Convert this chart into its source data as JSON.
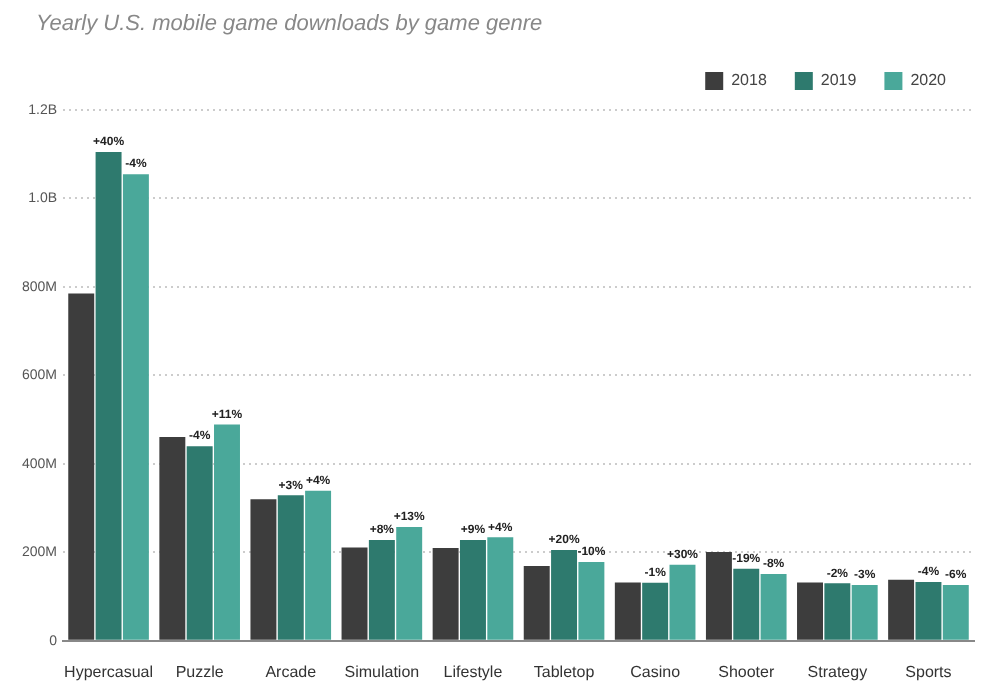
{
  "chart_data": {
    "type": "bar",
    "title": "Yearly U.S. mobile game downloads by game genre",
    "categories": [
      "Hypercasual",
      "Puzzle",
      "Arcade",
      "Simulation",
      "Lifestyle",
      "Tabletop",
      "Casino",
      "Shooter",
      "Strategy",
      "Sports"
    ],
    "series": [
      {
        "name": "2018",
        "color": "#3d3d3d",
        "values": [
          785000000,
          461000000,
          320000000,
          211000000,
          210000000,
          169000000,
          132000000,
          201000000,
          132000000,
          138000000
        ]
      },
      {
        "name": "2019",
        "color": "#2e7a6e",
        "values": [
          1105000000,
          440000000,
          329000000,
          228000000,
          228000000,
          205000000,
          131000000,
          163000000,
          130000000,
          133000000
        ]
      },
      {
        "name": "2020",
        "color": "#4aa89a",
        "values": [
          1055000000,
          489000000,
          339000000,
          257000000,
          234000000,
          178000000,
          172000000,
          151000000,
          126000000,
          126000000
        ]
      }
    ],
    "annotations": [
      "+40%",
      "-4%",
      "-4%",
      "+11%",
      "+3%",
      "+4%",
      "+8%",
      "+13%",
      "+9%",
      "+4%",
      "+20%",
      "-10%",
      "-1%",
      "+30%",
      "-19%",
      "-8%",
      "-2%",
      "-3%",
      "-4%",
      "-6%"
    ],
    "ylim": [
      0,
      1200000000
    ],
    "yticks": [
      {
        "value": 0,
        "label": "0"
      },
      {
        "value": 200000000,
        "label": "200M"
      },
      {
        "value": 400000000,
        "label": "400M"
      },
      {
        "value": 600000000,
        "label": "600M"
      },
      {
        "value": 800000000,
        "label": "800M"
      },
      {
        "value": 1000000000,
        "label": "1.0B"
      },
      {
        "value": 1200000000,
        "label": "1.2B"
      }
    ],
    "grid": "y",
    "legend": "top right"
  }
}
